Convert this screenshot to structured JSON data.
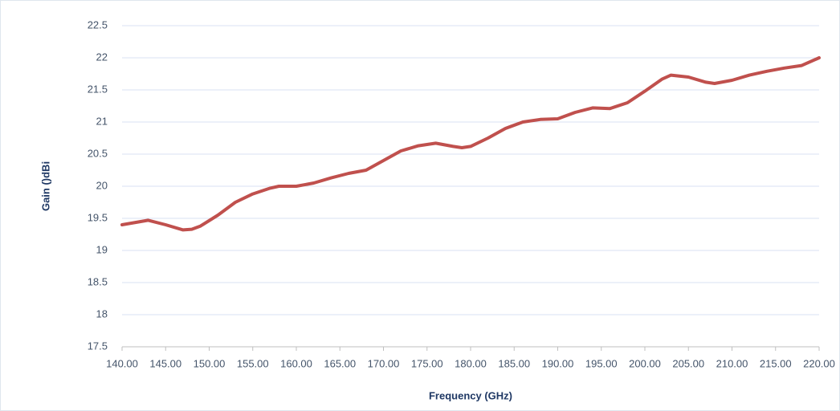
{
  "chart_data": {
    "type": "line",
    "x_label": "Frequency (GHz)",
    "y_label": "Gain ()dBi",
    "xlim": [
      140,
      220
    ],
    "xticks": [
      {
        "value": 140,
        "label": "140.00"
      },
      {
        "value": 145,
        "label": "145.00"
      },
      {
        "value": 150,
        "label": "150.00"
      },
      {
        "value": 155,
        "label": "155.00"
      },
      {
        "value": 160,
        "label": "160.00"
      },
      {
        "value": 165,
        "label": "165.00"
      },
      {
        "value": 170,
        "label": "170.00"
      },
      {
        "value": 175,
        "label": "175.00"
      },
      {
        "value": 180,
        "label": "180.00"
      },
      {
        "value": 185,
        "label": "185.00"
      },
      {
        "value": 190,
        "label": "190.00"
      },
      {
        "value": 195,
        "label": "195.00"
      },
      {
        "value": 200,
        "label": "200.00"
      },
      {
        "value": 205,
        "label": "205.00"
      },
      {
        "value": 210,
        "label": "210.00"
      },
      {
        "value": 215,
        "label": "215.00"
      },
      {
        "value": 220,
        "label": "220.00"
      }
    ],
    "ylim": [
      17.5,
      22.5
    ],
    "yticks": [
      17.5,
      18,
      18.5,
      19,
      19.5,
      20,
      20.5,
      21,
      21.5,
      22,
      22.5
    ],
    "grid": true,
    "x": [
      140,
      143,
      145,
      147,
      148,
      149,
      151,
      153,
      155,
      157,
      158,
      160,
      162,
      164,
      166,
      168,
      170,
      172,
      174,
      176,
      178,
      179,
      180,
      182,
      184,
      186,
      188,
      190,
      192,
      194,
      196,
      198,
      200,
      202,
      203,
      205,
      207,
      208,
      210,
      212,
      214,
      216,
      218,
      220
    ],
    "series": [
      {
        "name": "Gain",
        "color": "#c0504d",
        "values": [
          19.4,
          19.47,
          19.4,
          19.32,
          19.33,
          19.38,
          19.55,
          19.75,
          19.88,
          19.97,
          20.0,
          20.0,
          20.05,
          20.13,
          20.2,
          20.25,
          20.4,
          20.55,
          20.63,
          20.67,
          20.62,
          20.6,
          20.62,
          20.75,
          20.9,
          21.0,
          21.04,
          21.05,
          21.15,
          21.22,
          21.21,
          21.3,
          21.48,
          21.67,
          21.73,
          21.7,
          21.62,
          21.6,
          21.65,
          21.73,
          21.79,
          21.84,
          21.88,
          22.0
        ]
      }
    ]
  }
}
